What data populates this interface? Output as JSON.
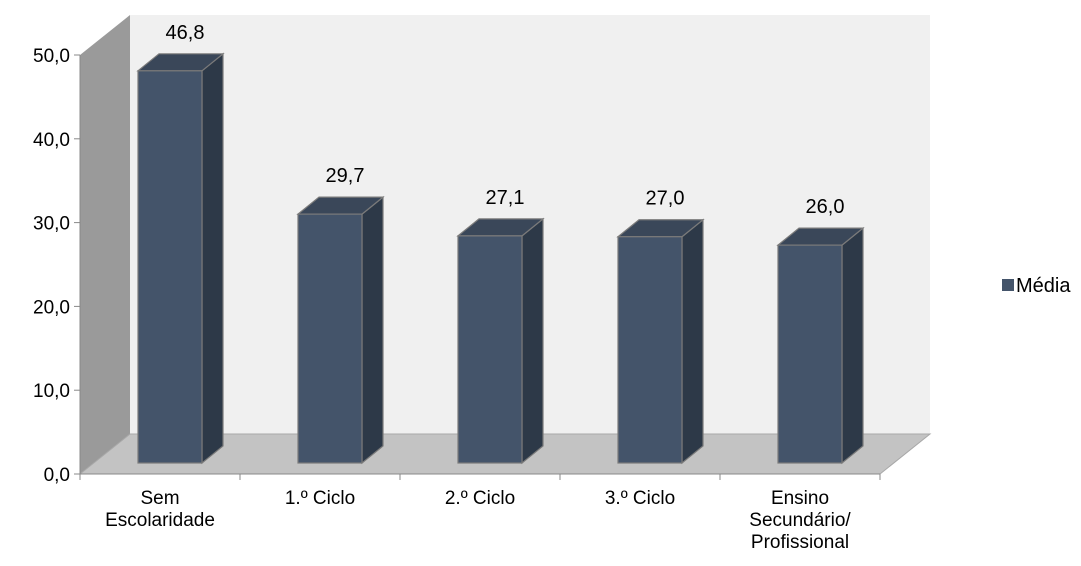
{
  "chart_data": {
    "type": "bar",
    "categories": [
      [
        "Sem",
        "Escolaridade"
      ],
      [
        "1.º Ciclo"
      ],
      [
        "2.º Ciclo"
      ],
      [
        "3.º Ciclo"
      ],
      [
        "Ensino",
        "Secundário/",
        "Profissional"
      ]
    ],
    "series": [
      {
        "name": "Média",
        "values": [
          46.8,
          29.7,
          27.1,
          27.0,
          26.0
        ],
        "color": "#44546a"
      }
    ],
    "data_labels": [
      "46,8",
      "29,7",
      "27,1",
      "27,0",
      "26,0"
    ],
    "yticks": [
      "0,0",
      "10,0",
      "20,0",
      "30,0",
      "40,0",
      "50,0"
    ],
    "ylim": [
      0,
      50
    ],
    "legend_position": "right",
    "style": "3d-column",
    "colors": {
      "bar_front": "#44546a",
      "bar_side": "#2d3948",
      "bar_top": "#3a4759",
      "wall_back": "#f0f0f0",
      "wall_side": "#9a9a9a",
      "floor": "#c3c3c3"
    }
  }
}
